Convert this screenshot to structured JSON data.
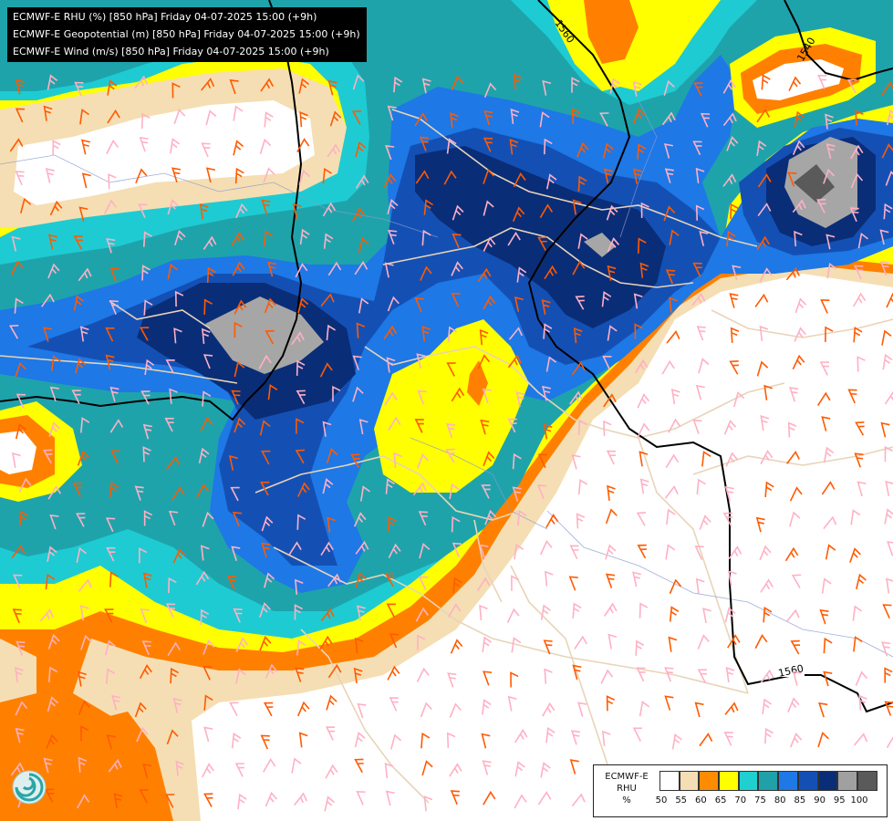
{
  "header": {
    "lines": [
      "ECMWF-E RHU (%) [850 hPa] Friday 04-07-2025 15:00 (+9h)",
      "ECMWF-E Geopotential (m) [850 hPa] Friday 04-07-2025 15:00 (+9h)",
      "ECMWF-E Wind (m/s) [850 hPa] Friday 04-07-2025 15:00 (+9h)"
    ]
  },
  "contour_labels": [
    "1560",
    "1540",
    "1560"
  ],
  "legend": {
    "title_line1": "ECMWF-E",
    "title_line2": "RHU",
    "title_line3": "%",
    "ticks": [
      "50",
      "55",
      "60",
      "65",
      "70",
      "75",
      "80",
      "85",
      "90",
      "95",
      "100"
    ],
    "colors": [
      "#ffffff",
      "#f5deb3",
      "#ff8c00",
      "#ffff00",
      "#20d0d0",
      "#20a0a8",
      "#1e78e6",
      "#1450b4",
      "#0a2d78",
      "#a0a0a0",
      "#5a5a5a"
    ]
  },
  "palette": {
    "white": "#ffffff",
    "wheat": "#f5deb3",
    "orange": "#ff8000",
    "yellow": "#ffff00",
    "cyan": "#1ecbd2",
    "teal": "#1fa3ab",
    "blue": "#1e78e6",
    "midblue": "#1450b4",
    "navy": "#0a2d78",
    "grey": "#a6a6a6",
    "darkgrey": "#5a5a5a",
    "border": "#e8d4b8",
    "barb_orange": "#ff5a00",
    "barb_pink": "#ffb0c4",
    "river": "#8a9ad0"
  }
}
